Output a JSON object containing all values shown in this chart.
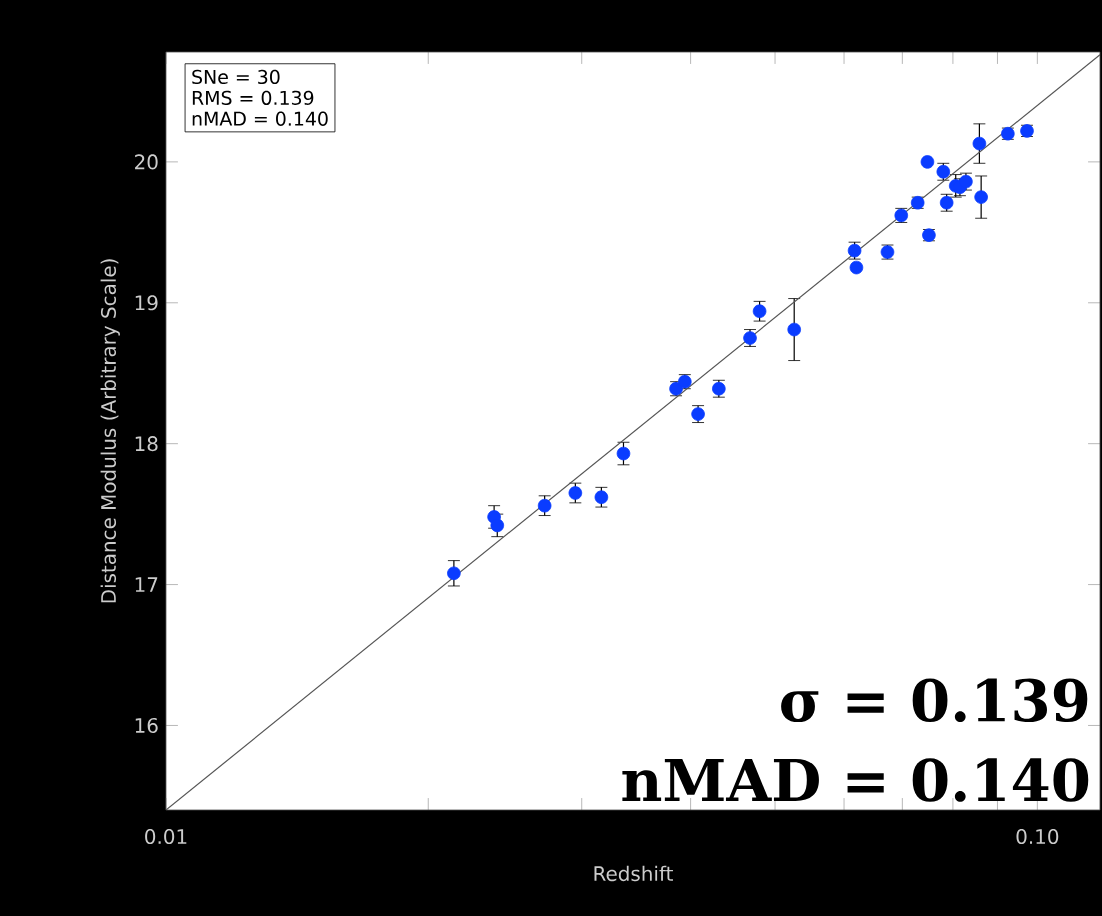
{
  "chart_data": {
    "type": "scatter",
    "xlabel": "Redshift",
    "ylabel": "Distance Modulus (Arbitrary Scale)",
    "log": "x",
    "marker": "circle",
    "xlim": [
      0.01,
      0.118
    ],
    "ylim": [
      15.4,
      20.78
    ],
    "xticks": [
      0.01,
      {
        "value": 0.02,
        "label": null
      },
      {
        "value": 0.03,
        "label": null
      },
      {
        "value": 0.04,
        "label": null
      },
      {
        "value": 0.05,
        "label": null
      },
      {
        "value": 0.06,
        "label": null
      },
      {
        "value": 0.07,
        "label": null
      },
      {
        "value": 0.08,
        "label": null
      },
      {
        "value": 0.09,
        "label": null
      },
      {
        "value": 0.1,
        "label": "0.10"
      }
    ],
    "yticks": [
      16,
      17,
      18,
      19,
      20
    ],
    "series": [
      {
        "color": "#0a3cff",
        "x": [
          0.0973,
          0.0925,
          0.0858,
          0.0748,
          0.078,
          0.0806,
          0.0815,
          0.0828,
          0.0862,
          0.0787,
          0.0729,
          0.0698,
          0.0751,
          0.0617,
          0.062,
          0.0673,
          0.048,
          0.0468,
          0.0526,
          0.0385,
          0.0394,
          0.0431,
          0.0408,
          0.0335,
          0.0295,
          0.0316,
          0.0272,
          0.0238,
          0.024,
          0.0214
        ],
        "values": [
          20.22,
          20.2,
          20.13,
          20.0,
          19.93,
          19.83,
          19.82,
          19.86,
          19.75,
          19.71,
          19.71,
          19.62,
          19.48,
          19.37,
          19.25,
          19.36,
          18.94,
          18.75,
          18.81,
          18.39,
          18.44,
          18.39,
          18.21,
          17.93,
          17.65,
          17.62,
          17.56,
          17.48,
          17.42,
          17.08
        ],
        "errors": [
          0.04,
          0.04,
          0.14,
          null,
          0.06,
          0.08,
          0.06,
          0.06,
          0.15,
          0.06,
          0.04,
          0.05,
          0.04,
          0.06,
          null,
          0.05,
          0.07,
          0.06,
          0.22,
          0.05,
          0.05,
          0.06,
          0.06,
          0.08,
          0.07,
          0.07,
          0.07,
          0.08,
          0.08,
          0.09
        ]
      },
      {
        "type": "line",
        "marker": "none",
        "color": "#555555",
        "x": [
          0.01,
          0.118
        ],
        "values": [
          15.4,
          20.76
        ]
      }
    ],
    "annotations": [
      "SNe = 30",
      "RMS = 0.139",
      "nMAD = 0.140",
      "σ = 0.139",
      "nMAD = 0.140"
    ]
  }
}
